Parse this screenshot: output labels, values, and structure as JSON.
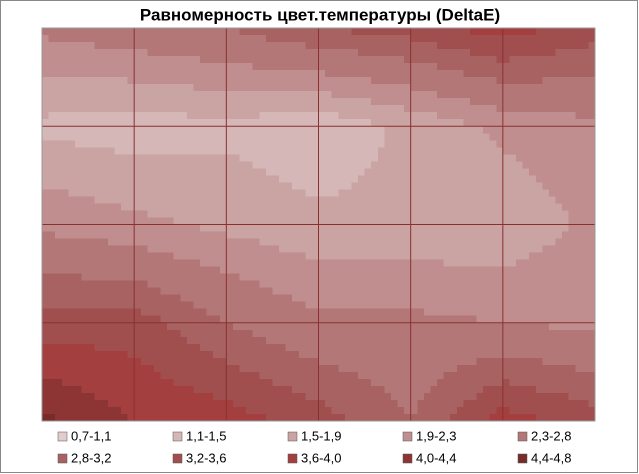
{
  "chart_data": {
    "type": "contour",
    "title": "Равномерность цвет.температуры (DeltaE)",
    "z": [
      [
        2.4,
        2.6,
        2.8,
        3.2,
        3.4,
        3.8,
        3.4
      ],
      [
        1.4,
        1.3,
        1.4,
        1.2,
        1.6,
        2.0,
        2.2
      ],
      [
        2.2,
        2.0,
        1.8,
        1.6,
        1.6,
        1.6,
        2.0
      ],
      [
        3.4,
        3.4,
        2.8,
        2.4,
        2.4,
        2.3,
        2.2
      ],
      [
        4.5,
        4.0,
        3.8,
        3.4,
        2.8,
        3.8,
        3.4
      ]
    ],
    "bands": [
      {
        "label": "0,7-1,1",
        "from": 0.7,
        "to": 1.1,
        "color": "#e2cccc"
      },
      {
        "label": "1,1-1,5",
        "from": 1.1,
        "to": 1.5,
        "color": "#d6b7b7"
      },
      {
        "label": "1,5-1,9",
        "from": 1.5,
        "to": 1.9,
        "color": "#caa3a3"
      },
      {
        "label": "1,9-2,3",
        "from": 1.9,
        "to": 2.3,
        "color": "#c08e8e"
      },
      {
        "label": "2,3-2,8",
        "from": 2.3,
        "to": 2.8,
        "color": "#b47777"
      },
      {
        "label": "2,8-3,2",
        "from": 2.8,
        "to": 3.2,
        "color": "#a96262"
      },
      {
        "label": "3,2-3,6",
        "from": 3.2,
        "to": 3.6,
        "color": "#a04e4e"
      },
      {
        "label": "3,6-4,0",
        "from": 3.6,
        "to": 4.0,
        "color": "#a33f3f"
      },
      {
        "label": "4,0-4,4",
        "from": 4.0,
        "to": 4.4,
        "color": "#8d3434"
      },
      {
        "label": "4,4-4,8",
        "from": 4.4,
        "to": 4.8,
        "color": "#772b2b"
      }
    ],
    "grid": true
  }
}
